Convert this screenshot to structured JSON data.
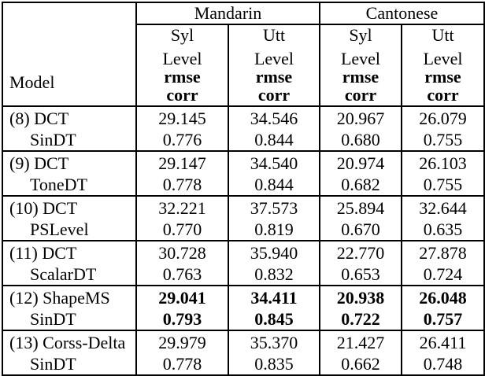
{
  "table": {
    "model_header": "Model",
    "language_groups": [
      "Mandarin",
      "Cantonese"
    ],
    "subheaders": [
      {
        "l1": "Syl",
        "l2": "Level",
        "l3": "rmse",
        "l4": "corr"
      },
      {
        "l1": "Utt",
        "l2": "Level",
        "l3": "rmse",
        "l4": "corr"
      },
      {
        "l1": "Syl",
        "l2": "Level",
        "l3": "rmse",
        "l4": "corr"
      },
      {
        "l1": "Utt",
        "l2": "Level",
        "l3": "rmse",
        "l4": "corr"
      }
    ],
    "rows": [
      {
        "model_line1": "(8) DCT",
        "model_line2": "SinDT",
        "values": [
          [
            "29.145",
            "0.776"
          ],
          [
            "34.546",
            "0.844"
          ],
          [
            "20.967",
            "0.680"
          ],
          [
            "26.079",
            "0.755"
          ]
        ]
      },
      {
        "model_line1": "(9) DCT",
        "model_line2": "ToneDT",
        "values": [
          [
            "29.147",
            "0.778"
          ],
          [
            "34.540",
            "0.844"
          ],
          [
            "20.974",
            "0.682"
          ],
          [
            "26.103",
            "0.755"
          ]
        ]
      },
      {
        "model_line1": "(10) DCT",
        "model_line2": "PSLevel",
        "values": [
          [
            "32.221",
            "0.770"
          ],
          [
            "37.573",
            "0.819"
          ],
          [
            "25.894",
            "0.670"
          ],
          [
            "32.644",
            "0.635"
          ]
        ]
      },
      {
        "model_line1": "(11) DCT",
        "model_line2": "ScalarDT",
        "values": [
          [
            "30.728",
            "0.763"
          ],
          [
            "35.940",
            "0.832"
          ],
          [
            "22.770",
            "0.653"
          ],
          [
            "27.878",
            "0.724"
          ]
        ]
      },
      {
        "model_line1": "(12) ShapeMS",
        "model_line2": "SinDT",
        "values": [
          [
            "29.041",
            "0.793"
          ],
          [
            "34.411",
            "0.845"
          ],
          [
            "20.938",
            "0.722"
          ],
          [
            "26.048",
            "0.757"
          ]
        ]
      },
      {
        "model_line1": "(13) Corss-Delta",
        "model_line2": "SinDT",
        "values": [
          [
            "29.979",
            "0.778"
          ],
          [
            "35.370",
            "0.835"
          ],
          [
            "21.427",
            "0.662"
          ],
          [
            "26.411",
            "0.748"
          ]
        ]
      }
    ]
  }
}
